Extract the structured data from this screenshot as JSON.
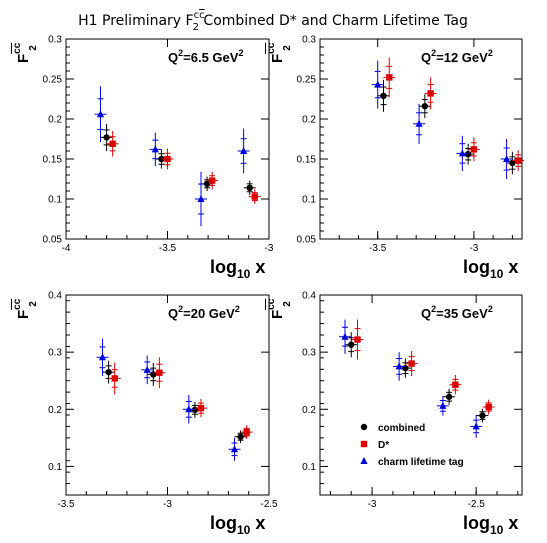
{
  "title": {
    "pre": "H1 Preliminary F",
    "sup": "c",
    "sup_bar": "c",
    "sub": "2",
    "post": " Combined D* and Charm Lifetime Tag"
  },
  "colors": {
    "combined": "#000000",
    "dstar": "#dd0000",
    "lifetime": "#0000dd"
  },
  "legend": {
    "combined": "combined",
    "dstar": "D*",
    "lifetime": "charm lifetime tag",
    "placement": "bottom-right panel, lower-left"
  },
  "chart_data": [
    {
      "type": "scatter",
      "label": {
        "pre": "Q",
        "sup": "2",
        "post": "=6.5 GeV",
        "sup2": "2"
      },
      "xlabel": {
        "main": "log",
        "sub": "10",
        "end": " x"
      },
      "ylabel": {
        "main": "F",
        "sup": "cc",
        "sub": "2"
      },
      "xlim": [
        -4,
        -3
      ],
      "ylim": [
        0.05,
        0.3
      ],
      "xticks": [
        "-4",
        "-3.5",
        "-3"
      ],
      "xtick_values": [
        -4,
        -3.5,
        -3
      ],
      "yticks": [
        "0.05",
        "0.1",
        "0.15",
        "0.2",
        "0.25",
        "0.3"
      ],
      "ytick_values": [
        0.05,
        0.1,
        0.15,
        0.2,
        0.25,
        0.3
      ],
      "series": [
        {
          "name": "combined",
          "key": "combined",
          "marker": "circle",
          "points": [
            {
              "x": -3.8,
              "y": 0.177,
              "err": 0.017
            },
            {
              "x": -3.53,
              "y": 0.15,
              "err": 0.012
            },
            {
              "x": -3.305,
              "y": 0.119,
              "err": 0.009
            },
            {
              "x": -3.095,
              "y": 0.114,
              "err": 0.009
            }
          ]
        },
        {
          "name": "D*",
          "key": "dstar",
          "marker": "square",
          "points": [
            {
              "x": -3.77,
              "y": 0.169,
              "err": 0.016
            },
            {
              "x": -3.5,
              "y": 0.15,
              "err": 0.013
            },
            {
              "x": -3.28,
              "y": 0.123,
              "err": 0.011
            },
            {
              "x": -3.07,
              "y": 0.103,
              "err": 0.009
            }
          ]
        },
        {
          "name": "charm lifetime tag",
          "key": "lifetime",
          "marker": "triangle",
          "points": [
            {
              "x": -3.83,
              "y": 0.206,
              "err": 0.035
            },
            {
              "x": -3.56,
              "y": 0.162,
              "err": 0.021
            },
            {
              "x": -3.335,
              "y": 0.1,
              "err": 0.034
            },
            {
              "x": -3.125,
              "y": 0.16,
              "err": 0.028
            }
          ]
        }
      ]
    },
    {
      "type": "scatter",
      "label": {
        "pre": "Q",
        "sup": "2",
        "post": "=12 GeV",
        "sup2": "2"
      },
      "xlabel": {
        "main": "log",
        "sub": "10",
        "end": " x"
      },
      "ylabel": {
        "main": "F",
        "sup": "cc",
        "sub": "2"
      },
      "xlim": [
        -3.8,
        -2.75
      ],
      "ylim": [
        0.05,
        0.3
      ],
      "xticks": [
        "-3.5",
        "-3"
      ],
      "xtick_values": [
        -3.5,
        -3
      ],
      "yticks": [
        "0.05",
        "0.1",
        "0.15",
        "0.2",
        "0.25",
        "0.3"
      ],
      "ytick_values": [
        0.05,
        0.1,
        0.15,
        0.2,
        0.25,
        0.3
      ],
      "series": [
        {
          "name": "combined",
          "key": "combined",
          "marker": "circle",
          "points": [
            {
              "x": -3.47,
              "y": 0.229,
              "err": 0.02
            },
            {
              "x": -3.255,
              "y": 0.216,
              "err": 0.015
            },
            {
              "x": -3.03,
              "y": 0.156,
              "err": 0.013
            },
            {
              "x": -2.8,
              "y": 0.145,
              "err": 0.014
            }
          ]
        },
        {
          "name": "D*",
          "key": "dstar",
          "marker": "square",
          "points": [
            {
              "x": -3.44,
              "y": 0.252,
              "err": 0.025
            },
            {
              "x": -3.225,
              "y": 0.232,
              "err": 0.02
            },
            {
              "x": -3.0,
              "y": 0.162,
              "err": 0.015
            },
            {
              "x": -2.77,
              "y": 0.148,
              "err": 0.013
            }
          ]
        },
        {
          "name": "charm lifetime tag",
          "key": "lifetime",
          "marker": "triangle",
          "points": [
            {
              "x": -3.5,
              "y": 0.243,
              "err": 0.03
            },
            {
              "x": -3.285,
              "y": 0.194,
              "err": 0.025
            },
            {
              "x": -3.06,
              "y": 0.157,
              "err": 0.022
            },
            {
              "x": -2.83,
              "y": 0.15,
              "err": 0.025
            }
          ]
        }
      ]
    },
    {
      "type": "scatter",
      "label": {
        "pre": "Q",
        "sup": "2",
        "post": "=20 GeV",
        "sup2": "2"
      },
      "xlabel": {
        "main": "log",
        "sub": "10",
        "end": " x"
      },
      "ylabel": {
        "main": "F",
        "sup": "cc",
        "sub": "2"
      },
      "xlim": [
        -3.5,
        -2.5
      ],
      "ylim": [
        0.05,
        0.4
      ],
      "xticks": [
        "-3.5",
        "-3",
        "-2.5"
      ],
      "xtick_values": [
        -3.5,
        -3,
        -2.5
      ],
      "yticks": [
        "0.1",
        "0.2",
        "0.3",
        "0.4"
      ],
      "ytick_values": [
        0.1,
        0.2,
        0.3,
        0.4
      ],
      "series": [
        {
          "name": "combined",
          "key": "combined",
          "marker": "circle",
          "points": [
            {
              "x": -3.29,
              "y": 0.265,
              "err": 0.02
            },
            {
              "x": -3.07,
              "y": 0.261,
              "err": 0.02
            },
            {
              "x": -2.865,
              "y": 0.199,
              "err": 0.014
            },
            {
              "x": -2.64,
              "y": 0.152,
              "err": 0.011
            }
          ]
        },
        {
          "name": "D*",
          "key": "dstar",
          "marker": "square",
          "points": [
            {
              "x": -3.26,
              "y": 0.254,
              "err": 0.028
            },
            {
              "x": -3.04,
              "y": 0.264,
              "err": 0.027
            },
            {
              "x": -2.835,
              "y": 0.202,
              "err": 0.016
            },
            {
              "x": -2.61,
              "y": 0.16,
              "err": 0.012
            }
          ]
        },
        {
          "name": "charm lifetime tag",
          "key": "lifetime",
          "marker": "triangle",
          "points": [
            {
              "x": -3.32,
              "y": 0.291,
              "err": 0.033
            },
            {
              "x": -3.1,
              "y": 0.269,
              "err": 0.025
            },
            {
              "x": -2.895,
              "y": 0.2,
              "err": 0.025
            },
            {
              "x": -2.67,
              "y": 0.13,
              "err": 0.02
            }
          ]
        }
      ]
    },
    {
      "type": "scatter",
      "label": {
        "pre": "Q",
        "sup": "2",
        "post": "=35 GeV",
        "sup2": "2"
      },
      "xlabel": {
        "main": "log",
        "sub": "10",
        "end": " x"
      },
      "ylabel": {
        "main": "F",
        "sup": "cc",
        "sub": "2"
      },
      "xlim": [
        -3.25,
        -2.28
      ],
      "ylim": [
        0.05,
        0.4
      ],
      "xticks": [
        "-3",
        "-2.5"
      ],
      "xtick_values": [
        -3,
        -2.5
      ],
      "yticks": [
        "0.1",
        "0.2",
        "0.3",
        "0.4"
      ],
      "ytick_values": [
        0.1,
        0.2,
        0.3,
        0.4
      ],
      "series": [
        {
          "name": "combined",
          "key": "combined",
          "marker": "circle",
          "points": [
            {
              "x": -3.1,
              "y": 0.313,
              "err": 0.022
            },
            {
              "x": -2.84,
              "y": 0.272,
              "err": 0.017
            },
            {
              "x": -2.63,
              "y": 0.222,
              "err": 0.014
            },
            {
              "x": -2.47,
              "y": 0.189,
              "err": 0.012
            }
          ]
        },
        {
          "name": "D*",
          "key": "dstar",
          "marker": "square",
          "points": [
            {
              "x": -3.07,
              "y": 0.322,
              "err": 0.035
            },
            {
              "x": -2.81,
              "y": 0.28,
              "err": 0.022
            },
            {
              "x": -2.6,
              "y": 0.243,
              "err": 0.017
            },
            {
              "x": -2.44,
              "y": 0.204,
              "err": 0.013
            }
          ]
        },
        {
          "name": "charm lifetime tag",
          "key": "lifetime",
          "marker": "triangle",
          "points": [
            {
              "x": -3.13,
              "y": 0.327,
              "err": 0.03
            },
            {
              "x": -2.87,
              "y": 0.275,
              "err": 0.025
            },
            {
              "x": -2.66,
              "y": 0.206,
              "err": 0.017
            },
            {
              "x": -2.5,
              "y": 0.17,
              "err": 0.02
            }
          ]
        }
      ]
    }
  ]
}
